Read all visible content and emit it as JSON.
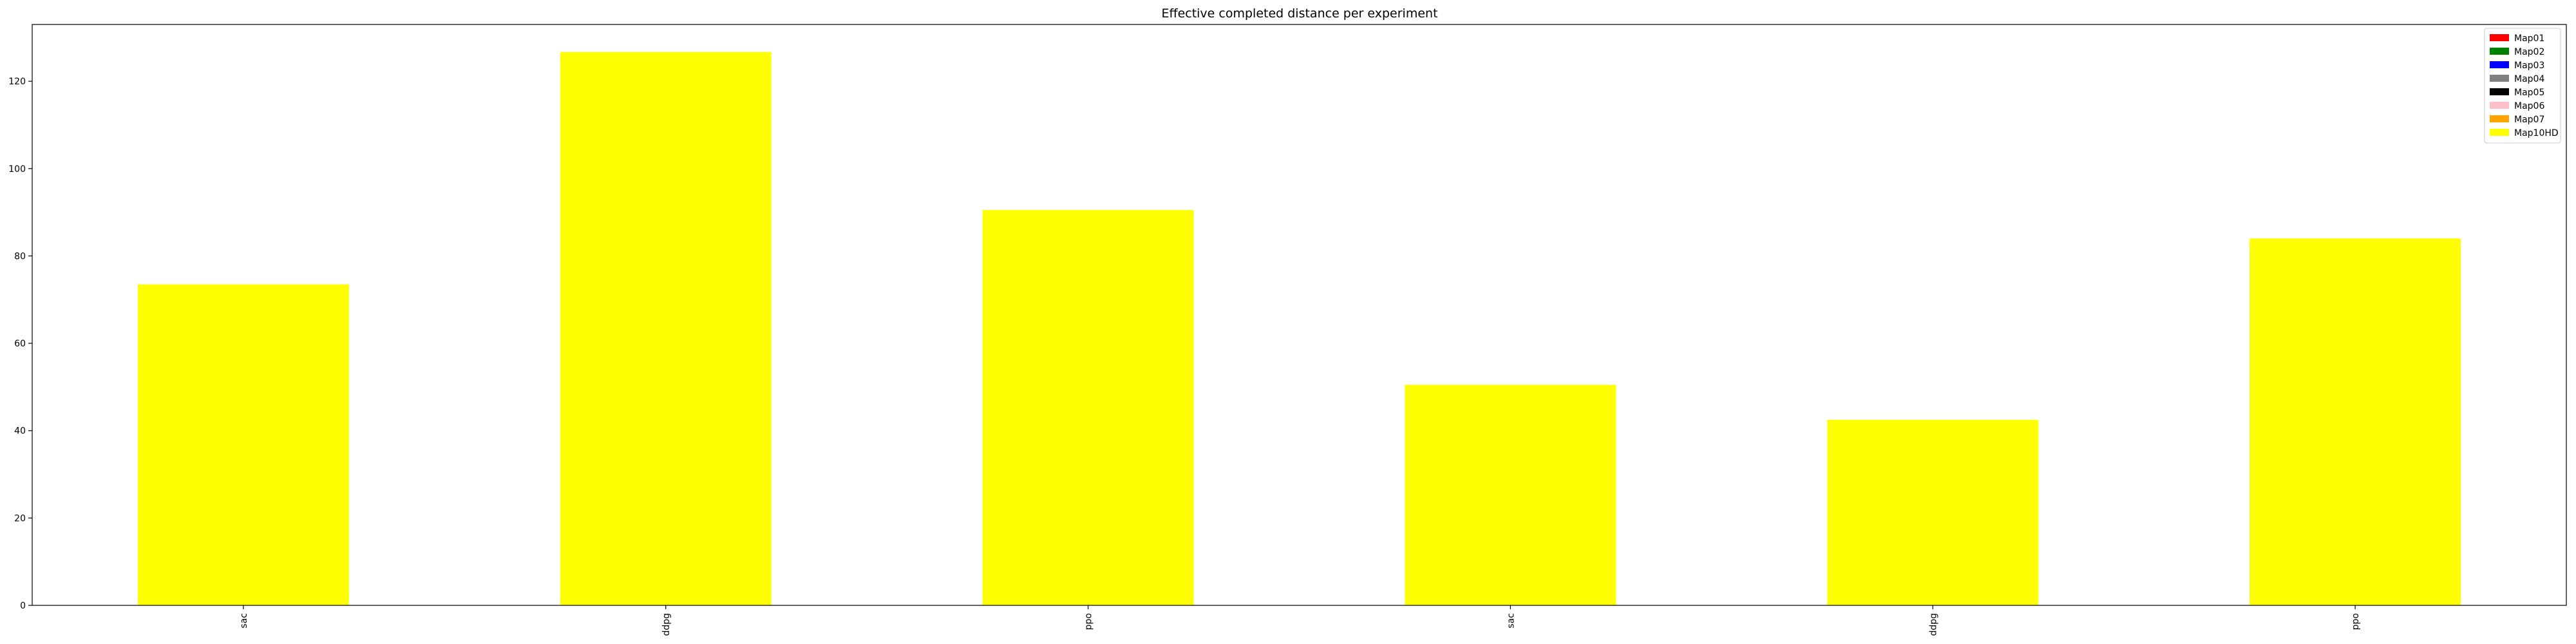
{
  "chart_data": {
    "type": "bar",
    "title": "Effective completed distance per experiment",
    "xlabel": "",
    "ylabel": "",
    "categories": [
      "sac",
      "ddpg",
      "ppo",
      "sac",
      "ddpg",
      "ppo"
    ],
    "series": [
      {
        "name": "Map01",
        "color": "#ff0000",
        "values": [
          0,
          0,
          0,
          0,
          0,
          0
        ]
      },
      {
        "name": "Map02",
        "color": "#008000",
        "values": [
          0,
          0,
          0,
          0,
          0,
          0
        ]
      },
      {
        "name": "Map03",
        "color": "#0000ff",
        "values": [
          0,
          0,
          0,
          0,
          0,
          0
        ]
      },
      {
        "name": "Map04",
        "color": "#808080",
        "values": [
          0,
          0,
          0,
          0,
          0,
          0
        ]
      },
      {
        "name": "Map05",
        "color": "#000000",
        "values": [
          0,
          0,
          0,
          0,
          0,
          0
        ]
      },
      {
        "name": "Map06",
        "color": "#ffc0cb",
        "values": [
          0,
          0,
          0,
          0,
          0,
          0
        ]
      },
      {
        "name": "Map07",
        "color": "#ffa500",
        "values": [
          0,
          0,
          0,
          0,
          0,
          0
        ]
      },
      {
        "name": "Map10HD",
        "color": "#ffff00",
        "values": [
          73.5,
          126.7,
          90.5,
          50.5,
          42.5,
          84.0
        ]
      }
    ],
    "ylim": [
      0,
      133
    ],
    "yticks": [
      0,
      20,
      40,
      60,
      80,
      100,
      120
    ],
    "grid": false,
    "legend": "upper-right"
  }
}
